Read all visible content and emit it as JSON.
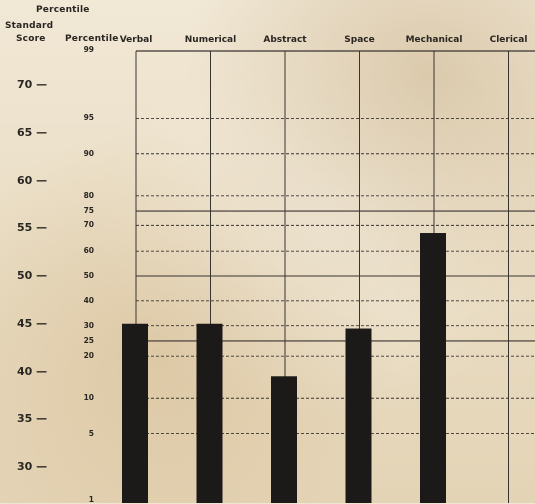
{
  "header": {
    "percentile_top": "Percentile",
    "standard_line1": "Standard",
    "standard_line2": "Score",
    "percentile_col": "Percentile"
  },
  "chart_data": {
    "type": "bar",
    "categories": [
      "Verbal",
      "Numerical",
      "Abstract",
      "Space",
      "Mechanical",
      "Clerical"
    ],
    "values": [
      45,
      45,
      39.5,
      44.5,
      54.5,
      null
    ],
    "title": "",
    "ylabel": "Standard Score",
    "ylim": [
      28,
      76
    ],
    "grid": true,
    "standard_score_ticks": [
      {
        "value": 70,
        "label": "70 —"
      },
      {
        "value": 65,
        "label": "65 —"
      },
      {
        "value": 60,
        "label": "60 —"
      },
      {
        "value": 55,
        "label": "55 —"
      },
      {
        "value": 50,
        "label": "50 —"
      },
      {
        "value": 45,
        "label": "45 —"
      },
      {
        "value": 40,
        "label": "40 —"
      },
      {
        "value": 35,
        "label": "35 —"
      },
      {
        "value": 30,
        "label": "30 —"
      }
    ],
    "percentile_ticks": [
      {
        "label": "99",
        "score": 73.5,
        "style": "none"
      },
      {
        "label": "95",
        "score": 66.5,
        "style": "dashed"
      },
      {
        "label": "90",
        "score": 62.8,
        "style": "dashed"
      },
      {
        "label": "80",
        "score": 58.4,
        "style": "dashed"
      },
      {
        "label": "75",
        "score": 56.8,
        "style": "solid"
      },
      {
        "label": "70",
        "score": 55.3,
        "style": "dashed"
      },
      {
        "label": "60",
        "score": 52.6,
        "style": "dashed"
      },
      {
        "label": "50",
        "score": 50,
        "style": "solid"
      },
      {
        "label": "40",
        "score": 47.4,
        "style": "dashed"
      },
      {
        "label": "30",
        "score": 44.8,
        "style": "dashed"
      },
      {
        "label": "25",
        "score": 43.2,
        "style": "solid"
      },
      {
        "label": "20",
        "score": 41.6,
        "style": "dashed"
      },
      {
        "label": "10",
        "score": 37.2,
        "style": "dashed"
      },
      {
        "label": "5",
        "score": 33.5,
        "style": "dashed"
      },
      {
        "label": "1",
        "score": 26.5,
        "style": "none"
      }
    ]
  },
  "colors": {
    "bar": "#1c1a18",
    "grid": "#3a3430",
    "paper": "#efe6d4"
  }
}
